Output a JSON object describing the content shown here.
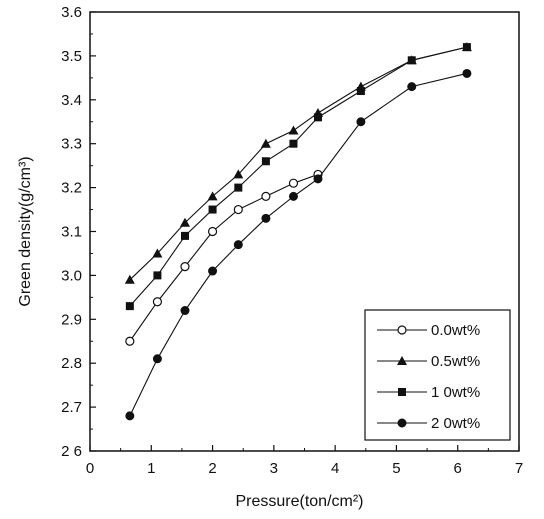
{
  "chart_data": {
    "type": "line",
    "title": "",
    "xlabel": "Pressure(ton/cm²)",
    "ylabel": "Green density(g/cm³)",
    "xlim": [
      0,
      7
    ],
    "ylim": [
      2.6,
      3.6
    ],
    "x_ticks": [
      0,
      1,
      2,
      3,
      4,
      5,
      6,
      7
    ],
    "x_tick_labels": [
      "0",
      "1",
      "2",
      "3",
      "4",
      "5",
      "6",
      "7"
    ],
    "y_ticks": [
      2.6,
      2.7,
      2.8,
      2.9,
      3.0,
      3.1,
      3.2,
      3.3,
      3.4,
      3.5,
      3.6
    ],
    "y_tick_labels": [
      "2 6",
      "2.7",
      "2.8",
      "2.9",
      "3.0",
      "3.1",
      "3.2",
      "3.3",
      "3.4",
      "3.5",
      "3.6"
    ],
    "grid": false,
    "legend_position": "bottom-right",
    "series": [
      {
        "name": "0.0wt%",
        "marker": "circle-open",
        "color": "#111111",
        "x": [
          0.65,
          1.1,
          1.55,
          2.0,
          2.42,
          2.87,
          3.32,
          3.72
        ],
        "y": [
          2.85,
          2.94,
          3.02,
          3.1,
          3.15,
          3.18,
          3.21,
          3.23
        ]
      },
      {
        "name": "0.5wt%",
        "marker": "triangle",
        "color": "#111111",
        "x": [
          0.65,
          1.1,
          1.55,
          2.0,
          2.42,
          2.87,
          3.32,
          3.72,
          4.42,
          5.25,
          6.15
        ],
        "y": [
          2.99,
          3.05,
          3.12,
          3.18,
          3.23,
          3.3,
          3.33,
          3.37,
          3.43,
          3.49,
          3.52
        ]
      },
      {
        "name": "1 0wt%",
        "marker": "square",
        "color": "#111111",
        "x": [
          0.65,
          1.1,
          1.55,
          2.0,
          2.42,
          2.87,
          3.32,
          3.72,
          4.42,
          5.25,
          6.15
        ],
        "y": [
          2.93,
          3.0,
          3.09,
          3.15,
          3.2,
          3.26,
          3.3,
          3.36,
          3.42,
          3.49,
          3.52
        ]
      },
      {
        "name": "2 0wt%",
        "marker": "circle-filled",
        "color": "#111111",
        "x": [
          0.65,
          1.1,
          1.55,
          2.0,
          2.42,
          2.87,
          3.32,
          3.72,
          4.42,
          5.25,
          6.15
        ],
        "y": [
          2.68,
          2.81,
          2.92,
          3.01,
          3.07,
          3.13,
          3.18,
          3.22,
          3.35,
          3.43,
          3.46
        ]
      }
    ]
  }
}
